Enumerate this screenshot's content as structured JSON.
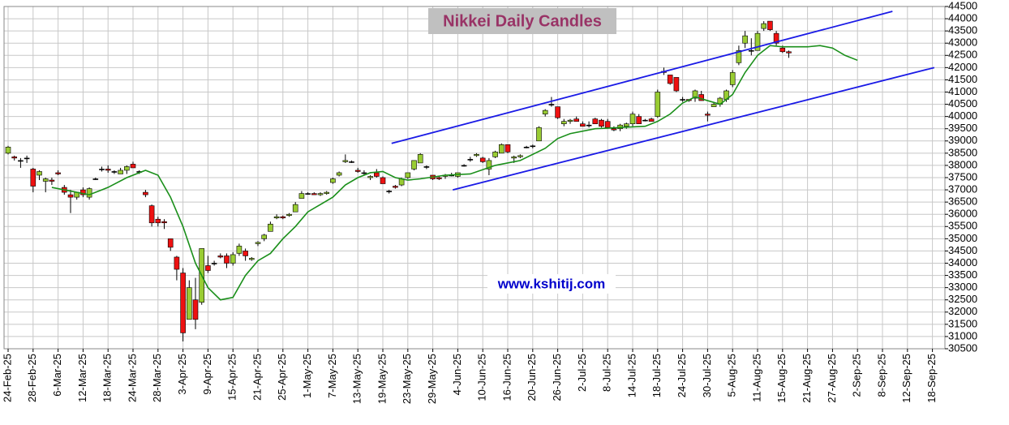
{
  "chart_data": {
    "type": "candlestick",
    "title": "Nikkei Daily Candles",
    "watermark": "www.kshitij.com",
    "xlim": [
      -0.65,
      150
    ],
    "xticks": [
      {
        "value": 0,
        "label": "24-Feb-25"
      },
      {
        "value": 4,
        "label": "28-Feb-25"
      },
      {
        "value": 8,
        "label": "6-Mar-25"
      },
      {
        "value": 12,
        "label": "12-Mar-25"
      },
      {
        "value": 16,
        "label": "18-Mar-25"
      },
      {
        "value": 20,
        "label": "24-Mar-25"
      },
      {
        "value": 24,
        "label": "28-Mar-25"
      },
      {
        "value": 28,
        "label": "3-Apr-25"
      },
      {
        "value": 32,
        "label": "9-Apr-25"
      },
      {
        "value": 36,
        "label": "15-Apr-25"
      },
      {
        "value": 40,
        "label": "21-Apr-25"
      },
      {
        "value": 44,
        "label": "25-Apr-25"
      },
      {
        "value": 48,
        "label": "1-May-25"
      },
      {
        "value": 52,
        "label": "7-May-25"
      },
      {
        "value": 56,
        "label": "13-May-25"
      },
      {
        "value": 60,
        "label": "19-May-25"
      },
      {
        "value": 64,
        "label": "23-May-25"
      },
      {
        "value": 68,
        "label": "29-May-25"
      },
      {
        "value": 72,
        "label": "4-Jun-25"
      },
      {
        "value": 76,
        "label": "10-Jun-25"
      },
      {
        "value": 80,
        "label": "16-Jun-25"
      },
      {
        "value": 84,
        "label": "20-Jun-25"
      },
      {
        "value": 88,
        "label": "26-Jun-25"
      },
      {
        "value": 92,
        "label": "2-Jul-25"
      },
      {
        "value": 96,
        "label": "8-Jul-25"
      },
      {
        "value": 100,
        "label": "14-Jul-25"
      },
      {
        "value": 104,
        "label": "18-Jul-25"
      },
      {
        "value": 108,
        "label": "24-Jul-25"
      },
      {
        "value": 112,
        "label": "30-Jul-25"
      },
      {
        "value": 116,
        "label": "5-Aug-25"
      },
      {
        "value": 120,
        "label": "11-Aug-25"
      },
      {
        "value": 124,
        "label": "15-Aug-25"
      },
      {
        "value": 128,
        "label": "21-Aug-25"
      },
      {
        "value": 132,
        "label": "27-Aug-25"
      },
      {
        "value": 136,
        "label": "2-Sep-25"
      },
      {
        "value": 140,
        "label": "8-Sep-25"
      },
      {
        "value": 144,
        "label": "12-Sep-25"
      },
      {
        "value": 148,
        "label": "18-Sep-25"
      }
    ],
    "ylim": [
      30500,
      44500
    ],
    "yticks": [
      30500,
      31000,
      31500,
      32000,
      32500,
      33000,
      33500,
      34000,
      34500,
      35000,
      35500,
      36000,
      36500,
      37000,
      37500,
      38000,
      38500,
      39000,
      39500,
      40000,
      40500,
      41000,
      41500,
      42000,
      42500,
      43000,
      43500,
      44000,
      44500
    ],
    "grid": true,
    "up_color": "#99cc33",
    "down_color": "#ee1111",
    "candles": {
      "x": [
        0,
        1,
        2,
        3,
        4,
        5,
        6,
        7,
        8,
        9,
        10,
        11,
        12,
        13,
        14,
        15,
        16,
        17,
        18,
        19,
        20,
        21,
        22,
        23,
        24,
        25,
        26,
        27,
        28,
        29,
        30,
        31,
        32,
        33,
        34,
        35,
        36,
        37,
        38,
        39,
        40,
        41,
        42,
        43,
        44,
        45,
        46,
        47,
        48,
        49,
        50,
        51,
        52,
        53,
        54,
        55,
        56,
        57,
        58,
        59,
        60,
        61,
        62,
        63,
        64,
        65,
        66,
        67,
        68,
        69,
        70,
        71,
        72,
        73,
        74,
        75,
        76,
        77,
        78,
        79,
        80,
        81,
        82,
        83,
        84,
        85,
        86,
        87,
        88,
        89,
        90,
        91,
        92,
        93,
        94,
        95,
        96,
        97,
        98,
        99,
        100,
        101,
        102,
        103,
        104,
        105,
        106,
        107,
        108,
        109,
        110,
        111,
        112,
        113,
        114,
        115,
        116,
        117,
        118,
        119,
        120,
        121,
        122,
        123,
        124,
        125
      ],
      "open": [
        38500,
        38350,
        38200,
        38300,
        37850,
        37600,
        37350,
        37400,
        37700,
        37100,
        36800,
        36700,
        37000,
        36700,
        37450,
        37850,
        37850,
        37750,
        37650,
        37800,
        38050,
        37750,
        36900,
        36350,
        35800,
        35700,
        35000,
        34250,
        33600,
        31700,
        32500,
        32400,
        33900,
        34000,
        34300,
        34300,
        34000,
        34400,
        34500,
        34150,
        34800,
        35000,
        35300,
        35850,
        35900,
        35950,
        36100,
        36650,
        36850,
        36850,
        36800,
        36850,
        37300,
        37600,
        38150,
        38150,
        37800,
        37700,
        37500,
        37700,
        37500,
        36950,
        37150,
        37200,
        37500,
        37850,
        38100,
        37950,
        37600,
        37500,
        37550,
        37600,
        37550,
        38000,
        38250,
        38400,
        38300,
        37850,
        38350,
        38500,
        38850,
        38300,
        38350,
        38750,
        38800,
        39000,
        40100,
        40500,
        40400,
        39700,
        39800,
        39900,
        39700,
        39650,
        39900,
        39850,
        39800,
        39500,
        39500,
        39600,
        39700,
        40000,
        39850,
        39900,
        40000,
        41850,
        41700,
        41600,
        40700,
        40700,
        40750,
        40900,
        40100,
        40400,
        40500,
        40700,
        41300,
        42200,
        43000,
        42700,
        42700,
        43600,
        43900,
        43400,
        42800,
        42650
      ],
      "high": [
        38800,
        38400,
        38300,
        38400,
        37900,
        37800,
        37500,
        37500,
        37800,
        37200,
        37000,
        36900,
        37100,
        37100,
        37500,
        37950,
        38000,
        37800,
        37900,
        38000,
        38150,
        37800,
        37000,
        36400,
        35900,
        35800,
        35000,
        34300,
        33800,
        33300,
        33400,
        34600,
        34300,
        34100,
        34400,
        34400,
        34450,
        34800,
        34600,
        34250,
        34900,
        35200,
        35700,
        36000,
        35950,
        36050,
        36500,
        36950,
        36900,
        36900,
        36900,
        36950,
        37500,
        37750,
        38450,
        38200,
        37900,
        37800,
        37600,
        37850,
        37550,
        37000,
        37200,
        37500,
        37700,
        38200,
        38500,
        38000,
        37600,
        37550,
        37650,
        37700,
        37700,
        38050,
        38350,
        38500,
        38350,
        38300,
        38600,
        38900,
        38850,
        38400,
        38450,
        38800,
        38850,
        39600,
        40300,
        40800,
        40400,
        39900,
        39900,
        40000,
        39800,
        39800,
        39950,
        39900,
        39900,
        39600,
        39700,
        39750,
        40200,
        40100,
        39900,
        39950,
        41100,
        42000,
        41700,
        41600,
        40800,
        40700,
        41100,
        41050,
        40200,
        40600,
        40800,
        41100,
        41900,
        42900,
        43500,
        43200,
        43500,
        43900,
        43900,
        43500,
        42900,
        42700
      ],
      "low": [
        38450,
        38200,
        37900,
        38100,
        36900,
        37400,
        36900,
        37200,
        37600,
        36800,
        36050,
        36600,
        36700,
        36600,
        37400,
        37750,
        37700,
        37650,
        37650,
        37650,
        37900,
        37650,
        36700,
        35500,
        35500,
        35400,
        34500,
        33300,
        30800,
        31700,
        31300,
        32300,
        33600,
        33900,
        34200,
        33800,
        33900,
        34300,
        34100,
        34100,
        34700,
        34900,
        35300,
        35800,
        35800,
        35900,
        36100,
        36650,
        36800,
        36800,
        36750,
        36800,
        37250,
        37550,
        38100,
        38100,
        37700,
        37600,
        37400,
        37500,
        37250,
        36850,
        37050,
        37150,
        37450,
        37800,
        38100,
        37850,
        37400,
        37400,
        37450,
        37550,
        37500,
        37950,
        38150,
        38350,
        38100,
        37600,
        38300,
        38500,
        38500,
        38100,
        38300,
        38700,
        38700,
        39000,
        40000,
        40400,
        39900,
        39600,
        39700,
        39800,
        39600,
        39550,
        39700,
        39550,
        39500,
        39400,
        39400,
        39500,
        39600,
        39700,
        39800,
        39800,
        39950,
        41700,
        41300,
        41000,
        40600,
        40600,
        40600,
        40650,
        39800,
        40400,
        40400,
        40600,
        41200,
        42100,
        42800,
        42500,
        42700,
        43500,
        43500,
        42900,
        42600,
        42400
      ],
      "close": [
        38750,
        38300,
        38200,
        38300,
        37150,
        37750,
        37450,
        37350,
        37650,
        36900,
        36700,
        36900,
        36800,
        37050,
        37450,
        37850,
        37800,
        37750,
        37800,
        37950,
        37900,
        37750,
        36800,
        35650,
        35650,
        35650,
        34650,
        33750,
        31150,
        33000,
        31700,
        34600,
        33700,
        34000,
        34250,
        34000,
        34350,
        34700,
        34300,
        34200,
        34850,
        35150,
        35600,
        35900,
        35850,
        36000,
        36400,
        36850,
        36850,
        36800,
        36850,
        36900,
        37450,
        37700,
        38200,
        38150,
        37750,
        37700,
        37550,
        37550,
        37250,
        36950,
        37100,
        37450,
        37700,
        38200,
        38450,
        37950,
        37450,
        37450,
        37600,
        37600,
        37700,
        38000,
        38250,
        38450,
        38150,
        38200,
        38550,
        38850,
        38550,
        38350,
        38400,
        38750,
        38800,
        39550,
        40250,
        40500,
        39950,
        39800,
        39850,
        39800,
        39600,
        39650,
        39700,
        39600,
        39550,
        39450,
        39650,
        39700,
        40100,
        39700,
        39850,
        39800,
        41000,
        41800,
        41350,
        41050,
        40700,
        40650,
        41050,
        40650,
        40050,
        40500,
        40750,
        41050,
        41800,
        42700,
        43300,
        42700,
        43400,
        43800,
        43550,
        43000,
        42650,
        42600
      ]
    },
    "moving_average": {
      "color": "#1a8f1a",
      "x": [
        7,
        10,
        13,
        16,
        19,
        22,
        24,
        26,
        28,
        30,
        32,
        34,
        36,
        38,
        40,
        42,
        44,
        46,
        48,
        50,
        52,
        54,
        56,
        58,
        60,
        62,
        64,
        66,
        70,
        74,
        78,
        82,
        86,
        88,
        90,
        94,
        98,
        102,
        104,
        106,
        108,
        110,
        112,
        114,
        116,
        118,
        120,
        122,
        124,
        126,
        128,
        130,
        132,
        134,
        136
      ],
      "values": [
        37100,
        36950,
        36800,
        37100,
        37500,
        37800,
        37600,
        36700,
        35500,
        34000,
        33000,
        32500,
        32600,
        33500,
        34100,
        34400,
        35000,
        35500,
        36100,
        36400,
        36700,
        37200,
        37500,
        37700,
        37750,
        37500,
        37400,
        37450,
        37600,
        37650,
        38000,
        38200,
        38700,
        39100,
        39300,
        39500,
        39550,
        39600,
        39800,
        40100,
        40550,
        40800,
        40650,
        40500,
        40900,
        41800,
        42500,
        42900,
        42850,
        42850,
        42850,
        42900,
        42800,
        42500,
        42300
      ]
    },
    "trendlines": {
      "color": "#1a1ae6",
      "lines": [
        {
          "x": [
            61.4,
            141.6
          ],
          "values": [
            38900,
            44300
          ]
        },
        {
          "x": [
            71.2,
            148.3
          ],
          "values": [
            37000,
            42000
          ]
        }
      ]
    }
  }
}
